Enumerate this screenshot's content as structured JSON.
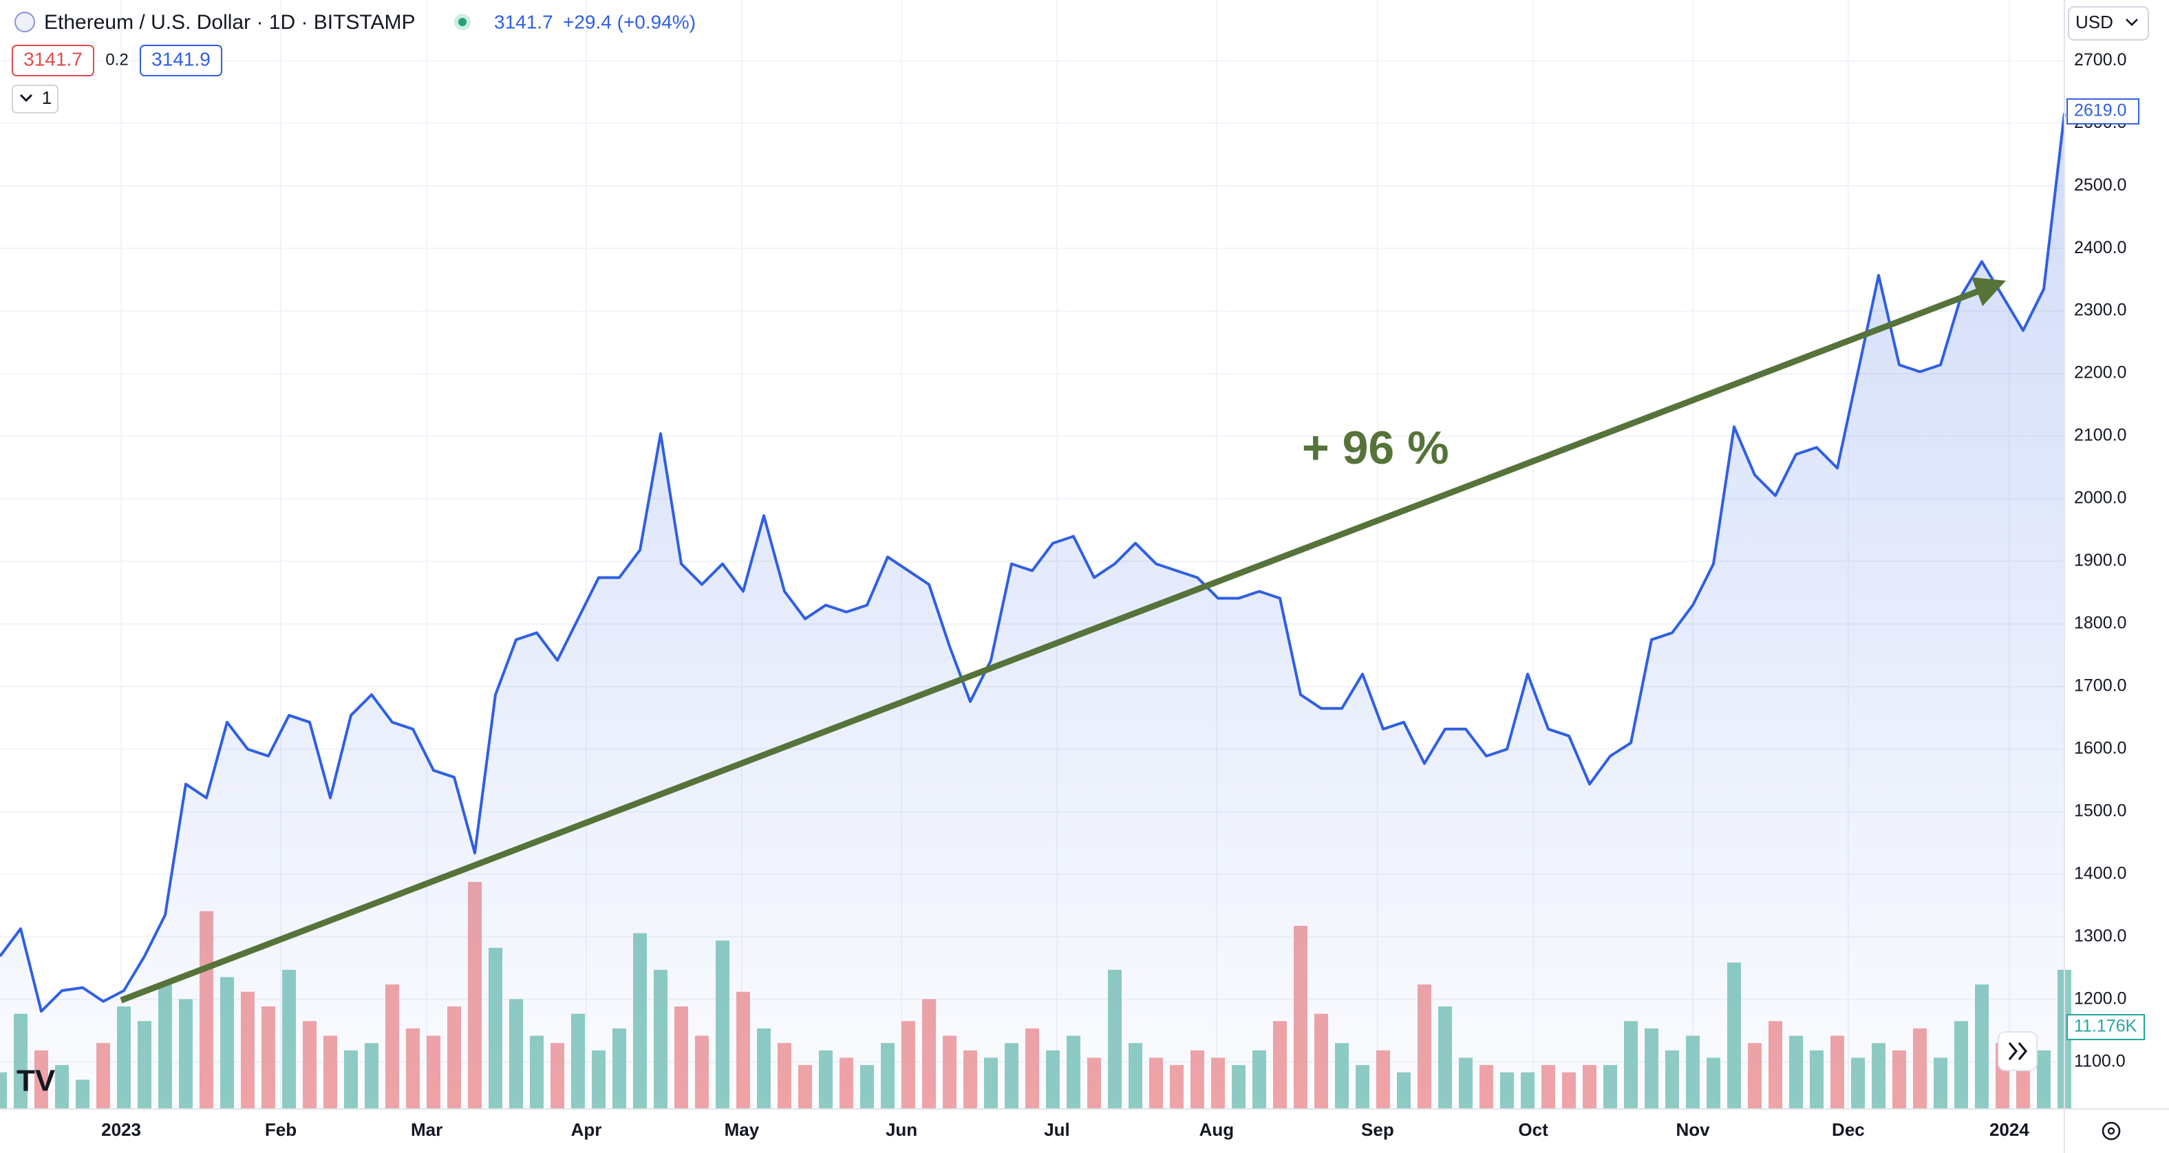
{
  "header": {
    "title": "Ethereum / U.S. Dollar · 1D · BITSTAMP",
    "last": "3141.7",
    "change": "+29.4 (+0.94%)",
    "bid": "3141.7",
    "spread": "0.2",
    "ask": "3141.9",
    "interval": "1",
    "currency": "USD"
  },
  "chart_data": {
    "type": "line",
    "color": "#2f5fe3",
    "fill": true,
    "grid": true,
    "values": [
      1269,
      1313,
      1181,
      1214,
      1219,
      1197,
      1214,
      1269,
      1335,
      1544,
      1522,
      1643,
      1600,
      1589,
      1654,
      1643,
      1522,
      1654,
      1687,
      1643,
      1632,
      1566,
      1555,
      1434,
      1687,
      1775,
      1786,
      1742,
      1808,
      1874,
      1874,
      1918,
      2104,
      1896,
      1863,
      1896,
      1852,
      1973,
      1852,
      1808,
      1830,
      1819,
      1830,
      1907,
      1885,
      1863,
      1764,
      1676,
      1742,
      1896,
      1885,
      1929,
      1940,
      1874,
      1896,
      1929,
      1896,
      1885,
      1874,
      1841,
      1841,
      1852,
      1841,
      1687,
      1665,
      1665,
      1720,
      1632,
      1643,
      1577,
      1632,
      1632,
      1589,
      1600,
      1720,
      1632,
      1621,
      1544,
      1589,
      1610,
      1775,
      1786,
      1830,
      1896,
      2115,
      2038,
      2005,
      2071,
      2082,
      2049,
      2203,
      2357,
      2214,
      2203,
      2214,
      2324,
      2379,
      2324,
      2269,
      2335,
      2616
    ],
    "volume": [
      5,
      13,
      8,
      6,
      4,
      9,
      14,
      12,
      17,
      15,
      27,
      18,
      16,
      14,
      19,
      12,
      10,
      8,
      9,
      17,
      11,
      10,
      14,
      31,
      22,
      15,
      10,
      9,
      13,
      8,
      11,
      24,
      19,
      14,
      10,
      23,
      16,
      11,
      9,
      6,
      8,
      7,
      6,
      9,
      12,
      15,
      10,
      8,
      7,
      9,
      11,
      8,
      10,
      7,
      19,
      9,
      7,
      6,
      8,
      7,
      6,
      8,
      12,
      25,
      13,
      9,
      6,
      8,
      5,
      17,
      14,
      7,
      6,
      5,
      5,
      6,
      5,
      6,
      6,
      12,
      11,
      8,
      10,
      7,
      20,
      9,
      12,
      10,
      8,
      10,
      7,
      9,
      8,
      11,
      7,
      12,
      17,
      9,
      6,
      8,
      19
    ],
    "volume_colors": {
      "up": "#8fcdc2",
      "down": "#f2a5a5"
    },
    "volume_label": {
      "value": 11.176,
      "label": "11.176K"
    },
    "last_price": {
      "value": 2619,
      "label": "2619.0"
    },
    "annotation": "+ 96 %",
    "xlim": [
      0,
      100
    ],
    "ylim": [
      1025,
      2797
    ],
    "yticks": [
      {
        "value": 1100,
        "label": "1100.0"
      },
      {
        "value": 1200,
        "label": "1200.0"
      },
      {
        "value": 1300,
        "label": "1300.0"
      },
      {
        "value": 1400,
        "label": "1400.0"
      },
      {
        "value": 1500,
        "label": "1500.0"
      },
      {
        "value": 1600,
        "label": "1600.0"
      },
      {
        "value": 1700,
        "label": "1700.0"
      },
      {
        "value": 1800,
        "label": "1800.0"
      },
      {
        "value": 1900,
        "label": "1900.0"
      },
      {
        "value": 2000,
        "label": "2000.0"
      },
      {
        "value": 2100,
        "label": "2100.0"
      },
      {
        "value": 2200,
        "label": "2200.0"
      },
      {
        "value": 2300,
        "label": "2300.0"
      },
      {
        "value": 2400,
        "label": "2400.0"
      },
      {
        "value": 2500,
        "label": "2500.0"
      },
      {
        "value": 2600,
        "label": "2600.0"
      },
      {
        "value": 2700,
        "label": "2700.0"
      }
    ],
    "xticks": [
      {
        "value": 5.87,
        "label": "2023"
      },
      {
        "value": 13.6,
        "label": "Feb"
      },
      {
        "value": 20.67,
        "label": "Mar"
      },
      {
        "value": 28.4,
        "label": "Apr"
      },
      {
        "value": 35.93,
        "label": "May"
      },
      {
        "value": 43.67,
        "label": "Jun"
      },
      {
        "value": 51.2,
        "label": "Jul"
      },
      {
        "value": 58.93,
        "label": "Aug"
      },
      {
        "value": 66.73,
        "label": "Sep"
      },
      {
        "value": 74.27,
        "label": "Oct"
      },
      {
        "value": 82,
        "label": "Nov"
      },
      {
        "value": 89.53,
        "label": "Dec"
      },
      {
        "value": 97.33,
        "label": "2024"
      }
    ]
  }
}
